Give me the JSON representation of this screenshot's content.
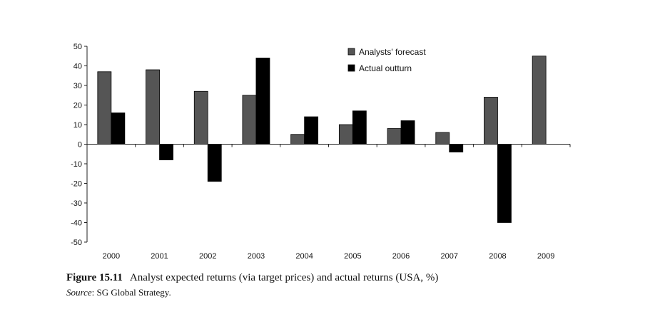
{
  "chart_data": {
    "type": "bar",
    "categories": [
      "2000",
      "2001",
      "2002",
      "2003",
      "2004",
      "2005",
      "2006",
      "2007",
      "2008",
      "2009"
    ],
    "series": [
      {
        "name": "Analysts' forecast",
        "color": "#555555",
        "values": [
          37,
          38,
          27,
          25,
          5,
          10,
          8,
          6,
          24,
          45
        ]
      },
      {
        "name": "Actual outturn",
        "color": "#000000",
        "values": [
          16,
          -8,
          -19,
          44,
          14,
          17,
          12,
          -4,
          -40,
          null
        ]
      }
    ],
    "ylim": [
      -50,
      50
    ],
    "yticks": [
      50,
      40,
      30,
      20,
      10,
      0,
      -10,
      -20,
      -30,
      -40,
      -50
    ],
    "legend_position": "top-right",
    "grid": false,
    "title": "",
    "xlabel": "",
    "ylabel": ""
  },
  "caption": {
    "label": "Figure 15.11",
    "text": "Analyst expected returns (via target prices) and actual returns (USA, %)"
  },
  "source": {
    "label": "Source",
    "text": ": SG Global Strategy."
  }
}
